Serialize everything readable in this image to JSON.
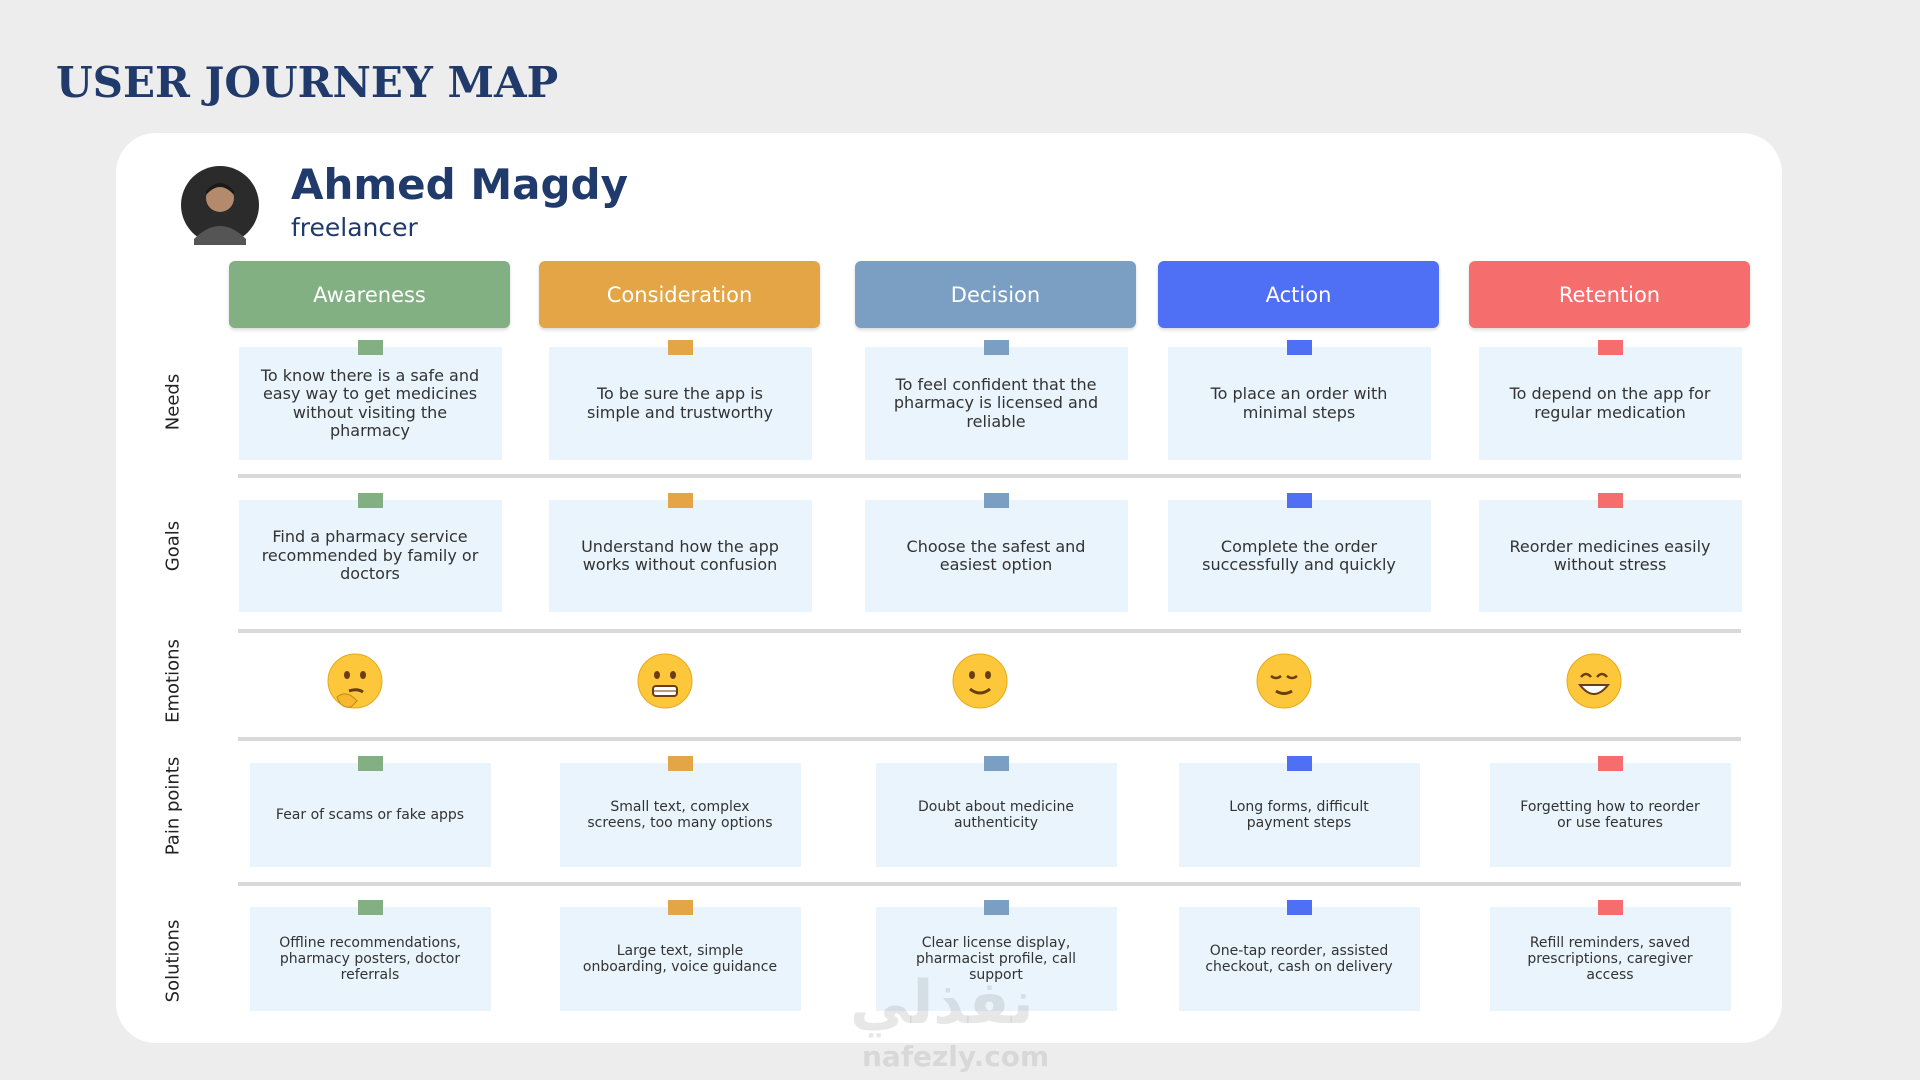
{
  "title": "USER JOURNEY MAP",
  "persona": {
    "name": "Ahmed Magdy",
    "role": "freelancer"
  },
  "stages": [
    {
      "name": "Awareness",
      "color": "#82b082"
    },
    {
      "name": "Consideration",
      "color": "#e3a545"
    },
    {
      "name": "Decision",
      "color": "#7b9fc3"
    },
    {
      "name": "Action",
      "color": "#4f6ff5"
    },
    {
      "name": "Retention",
      "color": "#f56d6d"
    }
  ],
  "rows": [
    {
      "label": "Needs",
      "cells": [
        "To know there is a safe and easy way to get medicines without visiting the pharmacy",
        "To be sure the app is simple and trustworthy",
        "To feel confident that the pharmacy is licensed and reliable",
        "To place an order with minimal steps",
        "To depend on the app for regular medication"
      ]
    },
    {
      "label": "Goals",
      "cells": [
        "Find a pharmacy service recommended by family or doctors",
        "Understand how the app works without confusion",
        "Choose the safest and easiest option",
        "Complete the order successfully and quickly",
        "Reorder medicines easily without stress"
      ]
    },
    {
      "label": "Emotions"
    },
    {
      "label": "Pain points",
      "cells": [
        "Fear of scams or fake apps",
        "Small text, complex screens, too many options",
        "Doubt about medicine authenticity",
        "Long forms, difficult payment steps",
        "Forgetting how to reorder or use features"
      ]
    },
    {
      "label": "Solutions",
      "cells": [
        "Offline recommendations, pharmacy posters, doctor referrals",
        "Large text, simple onboarding, voice guidance",
        "Clear license display, pharmacist profile, call support",
        "One-tap reorder, assisted checkout, cash on delivery",
        "Refill reminders, saved prescriptions, caregiver access"
      ]
    }
  ],
  "watermark": {
    "arabic": "نفذلي",
    "site": "nafezly.com"
  }
}
